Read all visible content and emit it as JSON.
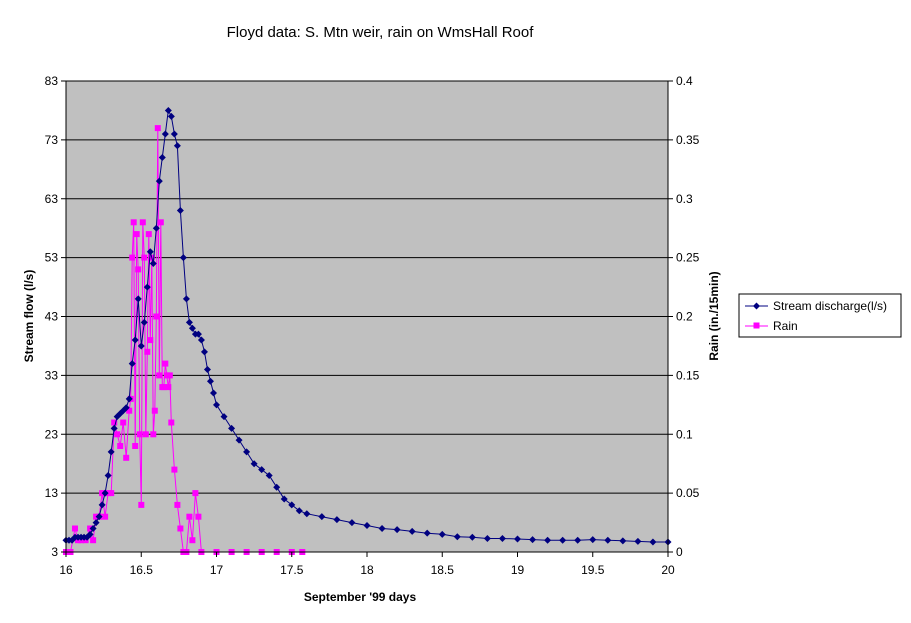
{
  "chart_data": {
    "type": "line",
    "title": "Floyd data: S. Mtn weir, rain on WmsHall Roof",
    "xlabel": "September '99 days",
    "ylabel": "Stream flow (l/s)",
    "y2label": "Rain (in./15min)",
    "xlim": [
      16,
      20
    ],
    "ylim": [
      3,
      83
    ],
    "y2lim": [
      0,
      0.4
    ],
    "x_ticks": [
      "16",
      "16.5",
      "17",
      "17.5",
      "18",
      "18.5",
      "19",
      "19.5",
      "20"
    ],
    "y_ticks": [
      "3",
      "13",
      "23",
      "33",
      "43",
      "53",
      "63",
      "73",
      "83"
    ],
    "y2_ticks": [
      "0",
      "0.05",
      "0.1",
      "0.15",
      "0.2",
      "0.25",
      "0.3",
      "0.35",
      "0.4"
    ],
    "grid": true,
    "legend_position": "right",
    "colors": {
      "discharge": "#000080",
      "rain": "#ff00ff",
      "plot_bg": "#c0c0c0"
    },
    "series": [
      {
        "name": "Stream discharge(l/s)",
        "axis": "left",
        "marker": "diamond",
        "x": [
          16.0,
          16.02,
          16.04,
          16.06,
          16.08,
          16.1,
          16.12,
          16.14,
          16.16,
          16.18,
          16.2,
          16.22,
          16.24,
          16.26,
          16.28,
          16.3,
          16.32,
          16.34,
          16.36,
          16.38,
          16.4,
          16.42,
          16.44,
          16.46,
          16.48,
          16.5,
          16.52,
          16.54,
          16.56,
          16.58,
          16.6,
          16.62,
          16.64,
          16.66,
          16.68,
          16.7,
          16.72,
          16.74,
          16.76,
          16.78,
          16.8,
          16.82,
          16.84,
          16.86,
          16.88,
          16.9,
          16.92,
          16.94,
          16.96,
          16.98,
          17.0,
          17.05,
          17.1,
          17.15,
          17.2,
          17.25,
          17.3,
          17.35,
          17.4,
          17.45,
          17.5,
          17.55,
          17.6,
          17.7,
          17.8,
          17.9,
          18.0,
          18.1,
          18.2,
          18.3,
          18.4,
          18.5,
          18.6,
          18.7,
          18.8,
          18.9,
          19.0,
          19.1,
          19.2,
          19.3,
          19.4,
          19.5,
          19.6,
          19.7,
          19.8,
          19.9,
          20.0
        ],
        "values": [
          5,
          5,
          5,
          5.5,
          5.5,
          5.5,
          5.5,
          5.5,
          6,
          7,
          8,
          9,
          11,
          13,
          16,
          20,
          24,
          26,
          26.5,
          27,
          27.5,
          29,
          35,
          39,
          46,
          38,
          42,
          48,
          54,
          52,
          58,
          66,
          70,
          74,
          78,
          77,
          74,
          72,
          61,
          53,
          46,
          42,
          41,
          40,
          40,
          39,
          37,
          34,
          32,
          30,
          28,
          26,
          24,
          22,
          20,
          18,
          17,
          16,
          14,
          12,
          11,
          10,
          9.5,
          9,
          8.5,
          8,
          7.5,
          7,
          6.8,
          6.5,
          6.2,
          6,
          5.6,
          5.5,
          5.3,
          5.3,
          5.2,
          5.1,
          5,
          5,
          5,
          5.1,
          5.0,
          4.9,
          4.8,
          4.7,
          4.7
        ]
      },
      {
        "name": "Rain",
        "axis": "right",
        "marker": "square",
        "x": [
          16.0,
          16.03,
          16.06,
          16.08,
          16.1,
          16.13,
          16.16,
          16.18,
          16.2,
          16.22,
          16.24,
          16.26,
          16.28,
          16.3,
          16.32,
          16.34,
          16.36,
          16.38,
          16.4,
          16.42,
          16.43,
          16.44,
          16.45,
          16.46,
          16.47,
          16.48,
          16.49,
          16.5,
          16.51,
          16.52,
          16.53,
          16.54,
          16.55,
          16.56,
          16.57,
          16.58,
          16.59,
          16.6,
          16.61,
          16.62,
          16.63,
          16.64,
          16.65,
          16.66,
          16.67,
          16.68,
          16.69,
          16.7,
          16.72,
          16.74,
          16.76,
          16.78,
          16.8,
          16.82,
          16.84,
          16.86,
          16.88,
          16.9,
          17.0,
          17.1,
          17.2,
          17.3,
          17.4,
          17.5,
          17.57
        ],
        "values": [
          0,
          0,
          0.02,
          0.01,
          0.01,
          0.01,
          0.02,
          0.01,
          0.03,
          0.03,
          0.05,
          0.03,
          0.05,
          0.05,
          0.11,
          0.1,
          0.09,
          0.11,
          0.08,
          0.12,
          0.13,
          0.25,
          0.28,
          0.09,
          0.27,
          0.24,
          0.1,
          0.04,
          0.28,
          0.25,
          0.1,
          0.17,
          0.27,
          0.18,
          0.25,
          0.1,
          0.12,
          0.2,
          0.36,
          0.15,
          0.28,
          0.14,
          0.14,
          0.16,
          0.15,
          0.14,
          0.15,
          0.11,
          0.07,
          0.04,
          0.02,
          0,
          0,
          0.03,
          0.01,
          0.05,
          0.03,
          0,
          0,
          0,
          0,
          0,
          0,
          0,
          0
        ]
      }
    ]
  }
}
